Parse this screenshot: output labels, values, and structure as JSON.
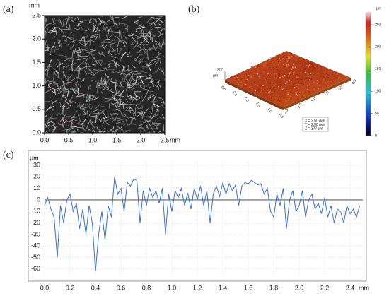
{
  "chart_data": [
    {
      "type": "image",
      "label": "(a)",
      "x_unit": "mm",
      "y_unit": "mm",
      "xlim": [
        0,
        2.5
      ],
      "ylim": [
        0,
        2.5
      ],
      "xticks": [
        {
          "value": 0,
          "label": "0.0"
        },
        0.5,
        {
          "value": 1,
          "label": "1.0"
        },
        1.5,
        {
          "value": 2,
          "label": "2.0"
        },
        2.5
      ],
      "yticks": [
        {
          "value": 0,
          "label": "0.0"
        },
        0.5,
        {
          "value": 1,
          "label": "1.0"
        },
        1.5,
        {
          "value": 2,
          "label": "2.0"
        },
        2.5
      ]
    },
    {
      "type": "surface3d",
      "label": "(b)",
      "z_unit": "µm",
      "z_label": "277",
      "zlim": [
        0,
        277
      ],
      "colorbar_ticks": [
        0,
        50,
        100,
        150,
        200,
        250
      ],
      "xticks": [
        {
          "value": 0,
          "label": "0.0"
        },
        0.5,
        {
          "value": 1,
          "label": "1.0"
        },
        1.5,
        {
          "value": 2,
          "label": "2.0"
        },
        2.5
      ],
      "yticks": [
        {
          "value": 0,
          "label": "0.0"
        },
        0.5,
        {
          "value": 1,
          "label": "1.0"
        },
        1.5,
        {
          "value": 2,
          "label": "2.0"
        },
        2.5
      ],
      "info": [
        "X = 2.50 mm",
        "Y = 2.50 mm",
        "Z = 277 µm"
      ]
    },
    {
      "type": "line",
      "label": "(c)",
      "x_unit": "mm",
      "y_unit": "µm",
      "color": "#3a6fd8",
      "grid": true,
      "xlim": [
        0,
        2.5
      ],
      "ylim": [
        -65,
        32
      ],
      "xticks": [
        {
          "value": 0,
          "label": "0.0"
        },
        0.2,
        0.4,
        0.6,
        0.8,
        {
          "value": 1,
          "label": "1.0"
        },
        1.2,
        1.4,
        1.6,
        1.8,
        {
          "value": 2,
          "label": "2.0"
        },
        2.2,
        2.4
      ],
      "yticks": [
        30,
        20,
        10,
        0,
        -10,
        -20,
        -30,
        -40,
        -50,
        -60
      ],
      "x": [
        0,
        0.025,
        0.05,
        0.075,
        0.1,
        0.125,
        0.15,
        0.175,
        0.2,
        0.225,
        0.25,
        0.275,
        0.3,
        0.325,
        0.35,
        0.375,
        0.4,
        0.425,
        0.45,
        0.475,
        0.5,
        0.525,
        0.55,
        0.575,
        0.6,
        0.625,
        0.65,
        0.675,
        0.7,
        0.725,
        0.75,
        0.775,
        0.8,
        0.825,
        0.85,
        0.875,
        0.9,
        0.925,
        0.95,
        0.975,
        1,
        1.025,
        1.05,
        1.075,
        1.1,
        1.125,
        1.15,
        1.175,
        1.2,
        1.225,
        1.25,
        1.275,
        1.3,
        1.325,
        1.35,
        1.375,
        1.4,
        1.425,
        1.45,
        1.475,
        1.5,
        1.525,
        1.55,
        1.575,
        1.6,
        1.625,
        1.65,
        1.675,
        1.7,
        1.725,
        1.75,
        1.775,
        1.8,
        1.825,
        1.85,
        1.875,
        1.9,
        1.925,
        1.95,
        1.975,
        2,
        2.025,
        2.05,
        2.075,
        2.1,
        2.125,
        2.15,
        2.175,
        2.2,
        2.225,
        2.25,
        2.275,
        2.3,
        2.325,
        2.35,
        2.375,
        2.4,
        2.425,
        2.45,
        2.475
      ],
      "values": [
        -5,
        2,
        -8,
        -15,
        -50,
        -5,
        -20,
        0,
        5,
        -10,
        -3,
        -25,
        -8,
        -30,
        -5,
        -20,
        -62,
        -30,
        -10,
        -35,
        -5,
        -15,
        20,
        5,
        10,
        -10,
        15,
        12,
        18,
        17,
        -20,
        8,
        -5,
        10,
        2,
        8,
        -3,
        10,
        -30,
        5,
        -10,
        8,
        2,
        10,
        -5,
        6,
        -8,
        10,
        0,
        12,
        -5,
        8,
        -20,
        5,
        12,
        3,
        15,
        5,
        14,
        8,
        13,
        -5,
        12,
        15,
        14,
        17,
        15,
        13,
        14,
        5,
        10,
        -10,
        -15,
        5,
        -5,
        10,
        -25,
        0,
        8,
        -10,
        -5,
        8,
        -15,
        0,
        5,
        -8,
        -3,
        -12,
        2,
        -15,
        -5,
        -20,
        -8,
        -10,
        -20,
        -5,
        -12,
        -8,
        -15,
        -5
      ]
    }
  ]
}
